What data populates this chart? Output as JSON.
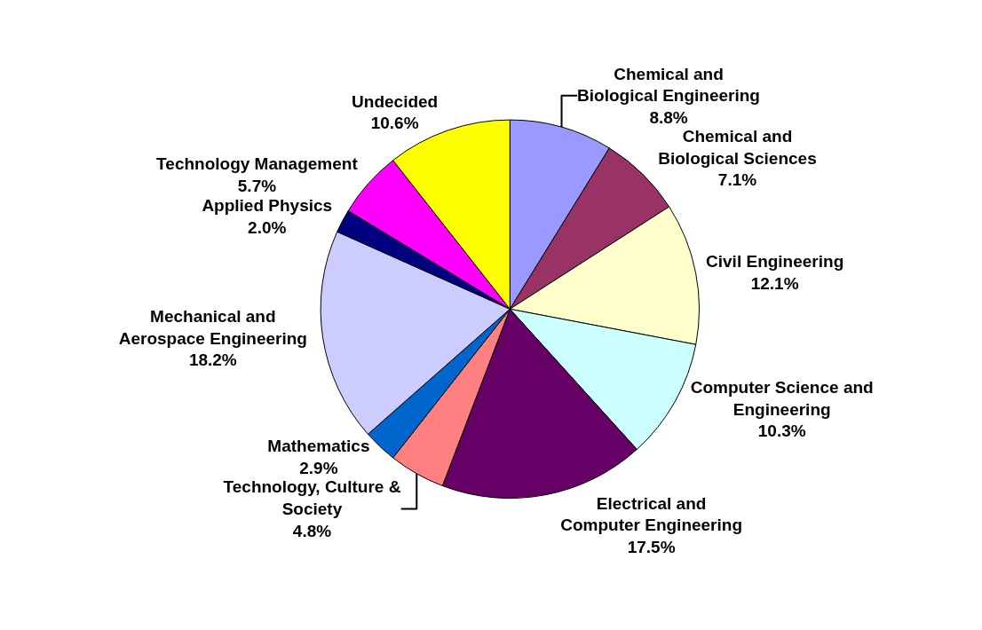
{
  "chart_data": {
    "type": "pie",
    "categories": [
      "Chemical and Biological Engineering",
      "Chemical and Biological Sciences",
      "Civil Engineering",
      "Computer Science and Engineering",
      "Electrical and Computer Engineering",
      "Technology, Culture & Society",
      "Mathematics",
      "Mechanical and Aerospace Engineering",
      "Applied Physics",
      "Technology Management",
      "Undecided"
    ],
    "values": [
      8.8,
      7.1,
      12.1,
      10.3,
      17.5,
      4.8,
      2.9,
      18.2,
      2.0,
      5.7,
      10.6
    ],
    "colors": [
      "#9999ff",
      "#993366",
      "#ffffcc",
      "#ccffff",
      "#660066",
      "#ff8080",
      "#0066cc",
      "#ccccff",
      "#000080",
      "#ff00ff",
      "#ffff00"
    ],
    "value_labels": [
      "8.8%",
      "7.1%",
      "12.1%",
      "10.3%",
      "17.5%",
      "4.8%",
      "2.9%",
      "18.2%",
      "2.0%",
      "5.7%",
      "10.6%"
    ],
    "legend": false
  }
}
